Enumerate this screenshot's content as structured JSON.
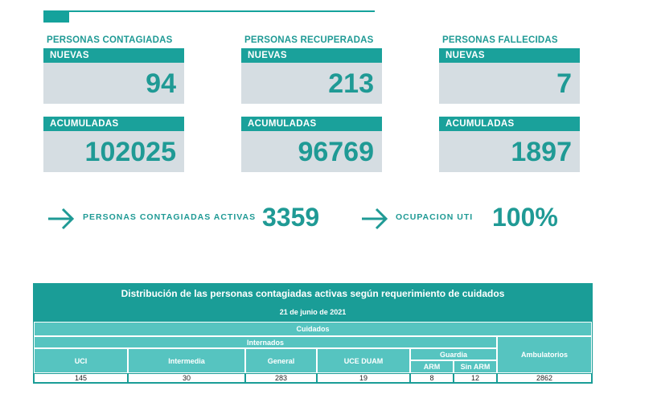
{
  "stats": [
    {
      "title": "PERSONAS CONTAGIADAS",
      "new_label": "NUEVAS",
      "new_value": "94",
      "acc_label": "ACUMULADAS",
      "acc_value": "102025"
    },
    {
      "title": "PERSONAS RECUPERADAS",
      "new_label": "NUEVAS",
      "new_value": "213",
      "acc_label": "ACUMULADAS",
      "acc_value": "96769"
    },
    {
      "title": "PERSONAS FALLECIDAS",
      "new_label": "NUEVAS",
      "new_value": "7",
      "acc_label": "ACUMULADAS",
      "acc_value": "1897"
    }
  ],
  "active": {
    "label": "PERSONAS CONTAGIADAS ACTIVAS",
    "value": "3359"
  },
  "uti": {
    "label": "OCUPACION UTI",
    "value": "100%"
  },
  "table": {
    "title": "Distribución de las personas contagiadas activas según requerimiento de cuidados",
    "date": "21 de junio de 2021",
    "cuidados": "Cuidados",
    "internados": "Internados",
    "guardia": "Guardia",
    "ambulatorios": "Ambulatorios",
    "cols": {
      "uci": "UCI",
      "intermedia": "Intermedia",
      "general": "General",
      "uce": "UCE DUAM",
      "arm": "ARM",
      "sin_arm": "Sin ARM"
    },
    "values": {
      "uci": "145",
      "intermedia": "30",
      "general": "283",
      "uce": "19",
      "arm": "8",
      "sin_arm": "12",
      "ambulatorios": "2862"
    }
  },
  "colors": {
    "accent": "#1aa19b",
    "box_bg": "#d5dde2",
    "table_light": "#56c4c0"
  }
}
